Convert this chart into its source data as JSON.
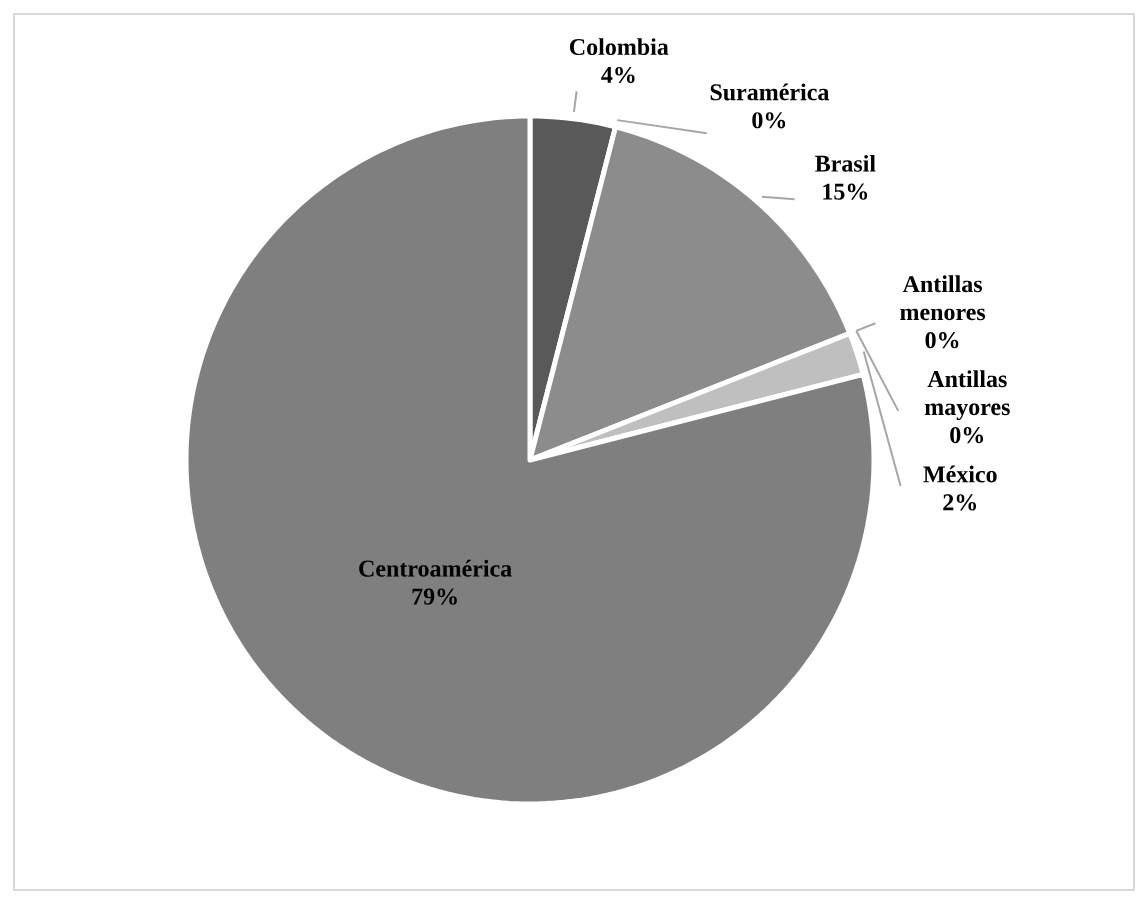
{
  "chart_data": {
    "type": "pie",
    "categories": [
      "Colombia",
      "Suramérica",
      "Brasil",
      "Antillas menores",
      "Antillas mayores",
      "México",
      "Centroamérica"
    ],
    "values": [
      4,
      0,
      15,
      0,
      0,
      2,
      79
    ],
    "colors": [
      "#595959",
      "#7f7f7f",
      "#8c8c8c",
      "#a6a6a6",
      "#b2b2b2",
      "#bfbfbf",
      "#7f7f7f"
    ],
    "value_labels": [
      "4%",
      "0%",
      "15%",
      "0%",
      "0%",
      "2%",
      "79%"
    ]
  }
}
